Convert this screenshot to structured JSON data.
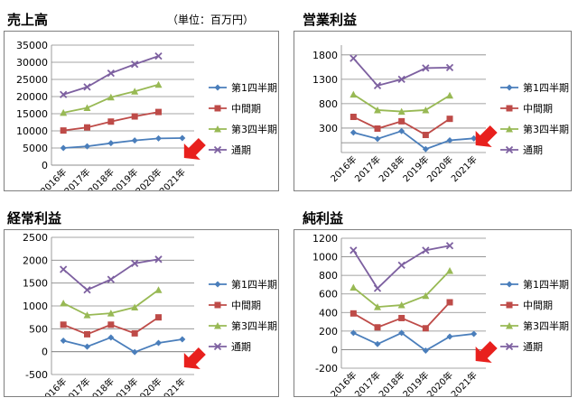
{
  "unit_note": "（単位：百万円）",
  "colors": {
    "q1": "#4a7ebb",
    "half": "#be4b48",
    "q3": "#98b954",
    "full": "#7d60a0",
    "arrow": "#e8201d",
    "grid": "#868686"
  },
  "chart_data": [
    {
      "type": "line",
      "title": "売上高",
      "categories": [
        "2016年",
        "2017年",
        "2018年",
        "2019年",
        "2020年",
        "2021年"
      ],
      "ylim": [
        0,
        35000
      ],
      "ystep": 5000,
      "series": [
        {
          "name": "第1四半期",
          "values": [
            5000,
            5500,
            6400,
            7200,
            7800,
            7900
          ]
        },
        {
          "name": "中間期",
          "values": [
            10100,
            11000,
            12700,
            14200,
            15500,
            null
          ]
        },
        {
          "name": "第3四半期",
          "values": [
            15300,
            16700,
            19800,
            21500,
            23500,
            null
          ]
        },
        {
          "name": "通期",
          "values": [
            20600,
            22800,
            26800,
            29400,
            31800,
            null
          ]
        }
      ]
    },
    {
      "type": "line",
      "title": "営業利益",
      "categories": [
        "2016年",
        "2017年",
        "2018年",
        "2019年",
        "2020年",
        "2021年"
      ],
      "ylim": [
        -200,
        2000
      ],
      "ystep": 500,
      "ymin_label": false,
      "series": [
        {
          "name": "第1四半期",
          "values": [
            210,
            80,
            240,
            -130,
            50,
            90
          ]
        },
        {
          "name": "中間期",
          "values": [
            530,
            290,
            440,
            160,
            490,
            null
          ]
        },
        {
          "name": "第3四半期",
          "values": [
            990,
            670,
            640,
            670,
            970,
            null
          ]
        },
        {
          "name": "通期",
          "values": [
            1730,
            1170,
            1300,
            1530,
            1540,
            null
          ]
        }
      ]
    },
    {
      "type": "line",
      "title": "経常利益",
      "categories": [
        "2016年",
        "2017年",
        "2018年",
        "2019年",
        "2020年",
        "2021年"
      ],
      "ylim": [
        -500,
        2500
      ],
      "ystep": 500,
      "series": [
        {
          "name": "第1四半期",
          "values": [
            240,
            110,
            310,
            -10,
            190,
            270
          ]
        },
        {
          "name": "中間期",
          "values": [
            590,
            380,
            590,
            400,
            750,
            null
          ]
        },
        {
          "name": "第3四半期",
          "values": [
            1060,
            800,
            840,
            970,
            1350,
            null
          ]
        },
        {
          "name": "通期",
          "values": [
            1800,
            1350,
            1580,
            1930,
            2020,
            null
          ]
        }
      ]
    },
    {
      "type": "line",
      "title": "純利益",
      "categories": [
        "2016年",
        "2017年",
        "2018年",
        "2019年",
        "2020年",
        "2021年"
      ],
      "ylim": [
        -200,
        1200
      ],
      "ystep": 200,
      "series": [
        {
          "name": "第1四半期",
          "values": [
            180,
            60,
            180,
            -10,
            140,
            170
          ]
        },
        {
          "name": "中間期",
          "values": [
            390,
            240,
            340,
            230,
            510,
            null
          ]
        },
        {
          "name": "第3四半期",
          "values": [
            670,
            460,
            480,
            580,
            850,
            null
          ]
        },
        {
          "name": "通期",
          "values": [
            1070,
            660,
            910,
            1070,
            1120,
            null
          ]
        }
      ]
    }
  ]
}
